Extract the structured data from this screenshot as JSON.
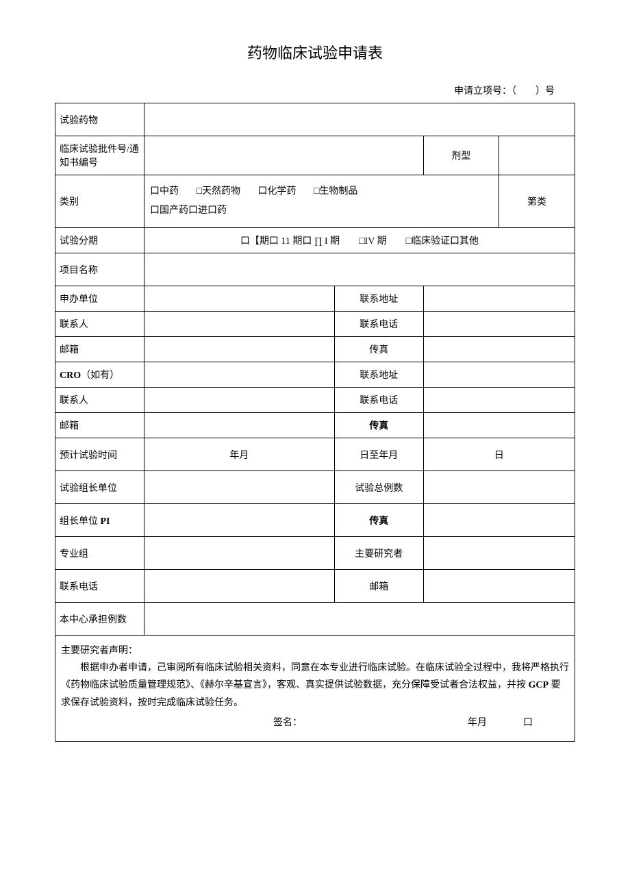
{
  "title": "药物临床试验申请表",
  "subtitle_prefix": "申请立项号：（",
  "subtitle_suffix": "）号",
  "rows": {
    "drug": "试验药物",
    "approval": "临床试验批件号/通知书编号",
    "dosage": "剂型",
    "category": "类别",
    "category_opts": {
      "a": "口中药",
      "b": "□天然药物",
      "c": "口化学药",
      "d": "□生物制品",
      "e": "口国产药口进口药"
    },
    "category_class": "第类",
    "phase": "试验分期",
    "phase_opts": "口【期口 11 期口 ∏ I 期  □IV 期  □临床验证口其他",
    "project_name": "项目名称",
    "sponsor": "申办单位",
    "address": "联系地址",
    "contact": "联系人",
    "phone": "联系电话",
    "email": "邮箱",
    "fax": "传真",
    "fax_bold": "传真",
    "cro": "CRO",
    "cro_suffix": "（如有）",
    "expected_time": "预计试验时间",
    "ym": "年月",
    "to_ym": "日至年月",
    "day": "日",
    "lead_unit": "试验组长单位",
    "total_cases": "试验总例数",
    "lead_pi_prefix": "组长单位 ",
    "lead_pi": "PI",
    "group": "专业组",
    "main_investigator": "主要研究者",
    "phone2": "联系电话",
    "email2": "邮箱",
    "center_cases": "本中心承担例数"
  },
  "statement": {
    "heading": "主要研究者声明：",
    "body1": "根据申办者申请，己审阅所有临床试验相关资料，同意在本专业进行临床试验。在临床试验全过程中，我将严格执行《药物临床试验质量管理规范》、《赫尔辛基宣言》，客观、真实提供试验数据，充分保障受试者合法权益，并按 ",
    "gcp": "GCP",
    "body2": " 要求保存试验资料，按时完成临床试验任务。",
    "sign": "签名：",
    "date_ym": "年月",
    "date_d": "口"
  }
}
